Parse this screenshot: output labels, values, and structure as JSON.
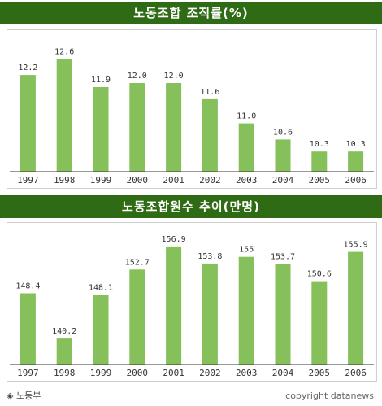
{
  "chart_data": [
    {
      "type": "bar",
      "title": "노동조합 조직률(%)",
      "categories": [
        "1997",
        "1998",
        "1999",
        "2000",
        "2001",
        "2002",
        "2003",
        "2004",
        "2005",
        "2006"
      ],
      "values": [
        12.2,
        12.6,
        11.9,
        12.0,
        12.0,
        11.6,
        11.0,
        10.6,
        10.3,
        10.3
      ],
      "value_labels": [
        "12.2",
        "12.6",
        "11.9",
        "12.0",
        "12.0",
        "11.6",
        "11.0",
        "10.6",
        "10.3",
        "10.3"
      ],
      "ylim": [
        9.8,
        12.95
      ],
      "grid": false,
      "bar_color": "#86c05a"
    },
    {
      "type": "bar",
      "title": "노동조합원수 추이(만명)",
      "categories": [
        "1997",
        "1998",
        "1999",
        "2000",
        "2001",
        "2002",
        "2003",
        "2004",
        "2005",
        "2006"
      ],
      "values": [
        148.4,
        140.2,
        148.1,
        152.7,
        156.9,
        153.8,
        155,
        153.7,
        150.6,
        155.9
      ],
      "value_labels": [
        "148.4",
        "140.2",
        "148.1",
        "152.7",
        "156.9",
        "153.8",
        "155",
        "153.7",
        "150.6",
        "155.9"
      ],
      "ylim": [
        135.5,
        158.5
      ],
      "grid": false,
      "bar_color": "#86c05a"
    }
  ],
  "source": "◈ 노동부",
  "copyright": "copyright datanews",
  "colors": {
    "title_bg": "#2f6b14",
    "bar": "#86c05a",
    "axis": "#333333"
  }
}
